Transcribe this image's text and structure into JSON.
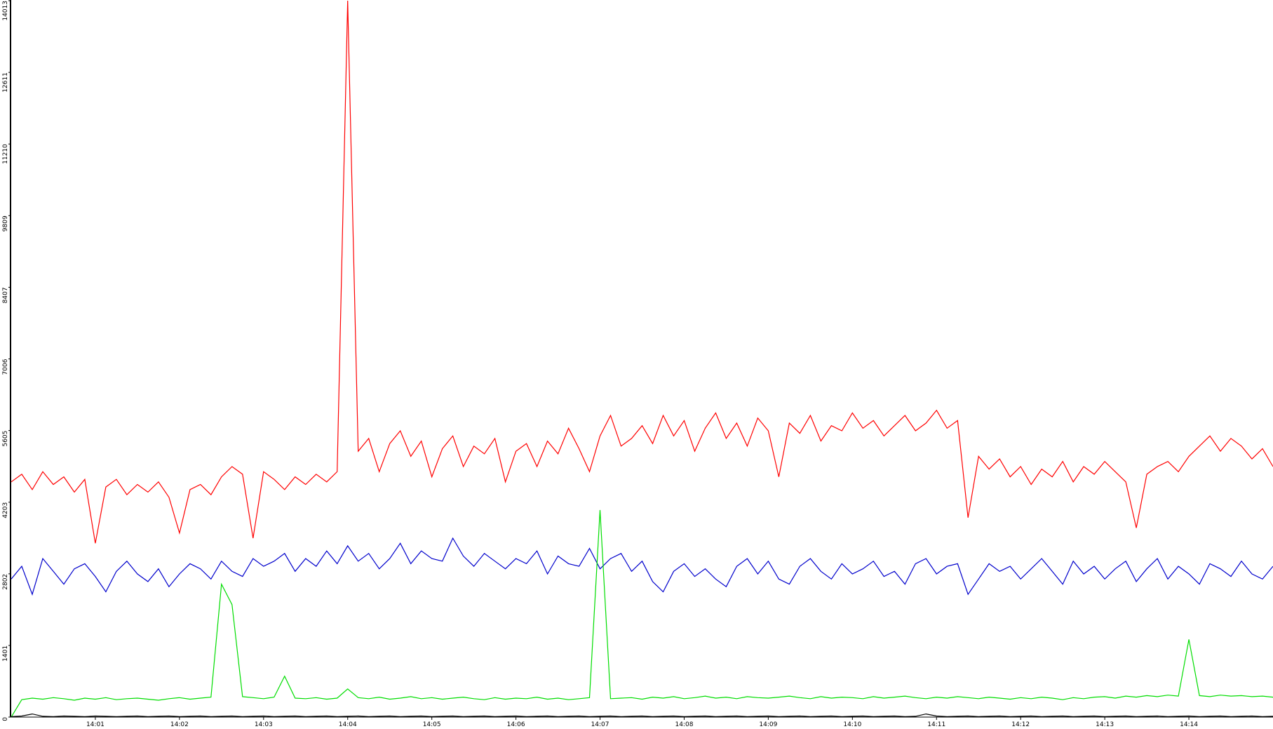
{
  "chart_data": {
    "type": "line",
    "xlim": [
      0,
      15
    ],
    "xticks": [
      {
        "value": 1,
        "label": "14:01"
      },
      {
        "value": 2,
        "label": "14:02"
      },
      {
        "value": 3,
        "label": "14:03"
      },
      {
        "value": 4,
        "label": "14:04"
      },
      {
        "value": 5,
        "label": "14:05"
      },
      {
        "value": 6,
        "label": "14:06"
      },
      {
        "value": 7,
        "label": "14:07"
      },
      {
        "value": 8,
        "label": "14:08"
      },
      {
        "value": 9,
        "label": "14:09"
      },
      {
        "value": 10,
        "label": "14:10"
      },
      {
        "value": 11,
        "label": "14:11"
      },
      {
        "value": 12,
        "label": "14:12"
      },
      {
        "value": 13,
        "label": "14:13"
      },
      {
        "value": 14,
        "label": "14:14"
      }
    ],
    "ylim": [
      0,
      14013
    ],
    "yticks": [
      0,
      1401,
      2802,
      4203,
      5605,
      7006,
      8407,
      9809,
      11210,
      12611,
      14013
    ],
    "x": [
      0,
      0.125,
      0.25,
      0.375,
      0.5,
      0.625,
      0.75,
      0.875,
      1,
      1.125,
      1.25,
      1.375,
      1.5,
      1.625,
      1.75,
      1.875,
      2,
      2.125,
      2.25,
      2.375,
      2.5,
      2.625,
      2.75,
      2.875,
      3,
      3.125,
      3.25,
      3.375,
      3.5,
      3.625,
      3.75,
      3.875,
      4,
      4.125,
      4.25,
      4.375,
      4.5,
      4.625,
      4.75,
      4.875,
      5,
      5.125,
      5.25,
      5.375,
      5.5,
      5.625,
      5.75,
      5.875,
      6,
      6.125,
      6.25,
      6.375,
      6.5,
      6.625,
      6.75,
      6.875,
      7,
      7.125,
      7.25,
      7.375,
      7.5,
      7.625,
      7.75,
      7.875,
      8,
      8.125,
      8.25,
      8.375,
      8.5,
      8.625,
      8.75,
      8.875,
      9,
      9.125,
      9.25,
      9.375,
      9.5,
      9.625,
      9.75,
      9.875,
      10,
      10.125,
      10.25,
      10.375,
      10.5,
      10.625,
      10.75,
      10.875,
      11,
      11.125,
      11.25,
      11.375,
      11.5,
      11.625,
      11.75,
      11.875,
      12,
      12.125,
      12.25,
      12.375,
      12.5,
      12.625,
      12.75,
      12.875,
      13,
      13.125,
      13.25,
      13.375,
      13.5,
      13.625,
      13.75,
      13.875,
      14,
      14.125,
      14.25,
      14.375,
      14.5,
      14.625,
      14.75,
      14.875,
      15
    ],
    "series": [
      {
        "color": "#ff0000",
        "values": [
          4600,
          4750,
          4450,
          4800,
          4550,
          4700,
          4400,
          4650,
          3400,
          4500,
          4650,
          4350,
          4550,
          4400,
          4600,
          4300,
          3600,
          4450,
          4550,
          4350,
          4700,
          4900,
          4750,
          3500,
          4800,
          4650,
          4450,
          4700,
          4550,
          4750,
          4600,
          4800,
          14013,
          5200,
          5450,
          4800,
          5350,
          5600,
          5100,
          5400,
          4700,
          5250,
          5500,
          4900,
          5300,
          5150,
          5450,
          4600,
          5200,
          5350,
          4900,
          5400,
          5150,
          5650,
          5250,
          4800,
          5500,
          5900,
          5300,
          5450,
          5700,
          5350,
          5900,
          5500,
          5800,
          5200,
          5650,
          5950,
          5450,
          5750,
          5300,
          5850,
          5600,
          4700,
          5750,
          5550,
          5900,
          5400,
          5700,
          5600,
          5950,
          5650,
          5800,
          5500,
          5700,
          5900,
          5600,
          5750,
          6000,
          5650,
          5800,
          3900,
          5100,
          4850,
          5050,
          4700,
          4900,
          4550,
          4850,
          4700,
          5000,
          4600,
          4900,
          4750,
          5000,
          4800,
          4600,
          3700,
          4750,
          4900,
          5000,
          4800,
          5100,
          5300,
          5500,
          5200,
          5450,
          5300,
          5050,
          5250,
          4900
        ]
      },
      {
        "color": "#0000cc",
        "values": [
          2700,
          2950,
          2400,
          3100,
          2850,
          2600,
          2900,
          3000,
          2750,
          2450,
          2850,
          3050,
          2800,
          2650,
          2900,
          2550,
          2800,
          3000,
          2900,
          2700,
          3050,
          2850,
          2750,
          3100,
          2950,
          3050,
          3200,
          2850,
          3100,
          2950,
          3250,
          3000,
          3350,
          3050,
          3200,
          2900,
          3100,
          3400,
          3000,
          3250,
          3100,
          3050,
          3500,
          3150,
          2950,
          3200,
          3050,
          2900,
          3100,
          3000,
          3250,
          2800,
          3150,
          3000,
          2950,
          3300,
          2900,
          3100,
          3200,
          2850,
          3050,
          2650,
          2450,
          2850,
          3000,
          2750,
          2900,
          2700,
          2550,
          2950,
          3100,
          2800,
          3050,
          2700,
          2600,
          2950,
          3100,
          2850,
          2700,
          3000,
          2800,
          2900,
          3050,
          2750,
          2850,
          2600,
          3000,
          3100,
          2800,
          2950,
          3000,
          2400,
          2700,
          3000,
          2850,
          2950,
          2700,
          2900,
          3100,
          2850,
          2600,
          3050,
          2800,
          2950,
          2700,
          2900,
          3050,
          2650,
          2900,
          3100,
          2700,
          2950,
          2800,
          2600,
          3000,
          2900,
          2750,
          3050,
          2800,
          2700,
          2950
        ]
      },
      {
        "color": "#00dd00",
        "values": [
          0,
          340,
          370,
          350,
          380,
          360,
          330,
          370,
          350,
          380,
          340,
          360,
          370,
          350,
          330,
          360,
          380,
          350,
          370,
          390,
          2600,
          2200,
          400,
          380,
          360,
          390,
          800,
          370,
          360,
          380,
          350,
          370,
          550,
          380,
          360,
          390,
          350,
          370,
          400,
          360,
          380,
          350,
          370,
          390,
          360,
          340,
          380,
          350,
          370,
          360,
          390,
          350,
          370,
          340,
          360,
          380,
          4050,
          360,
          370,
          380,
          350,
          390,
          370,
          400,
          360,
          380,
          410,
          370,
          390,
          360,
          400,
          380,
          370,
          390,
          410,
          380,
          360,
          400,
          370,
          390,
          380,
          360,
          400,
          370,
          390,
          410,
          380,
          360,
          390,
          370,
          400,
          380,
          360,
          390,
          370,
          350,
          380,
          360,
          390,
          370,
          340,
          380,
          360,
          390,
          400,
          370,
          410,
          390,
          420,
          400,
          430,
          410,
          1520,
          420,
          400,
          430,
          410,
          420,
          400,
          410,
          390
        ]
      },
      {
        "color": "#000000",
        "values": [
          10,
          20,
          60,
          15,
          10,
          20,
          15,
          10,
          20,
          15,
          10,
          15,
          20,
          10,
          15,
          20,
          10,
          15,
          20,
          10,
          15,
          20,
          10,
          15,
          20,
          10,
          15,
          20,
          10,
          15,
          20,
          10,
          15,
          20,
          10,
          15,
          20,
          10,
          15,
          20,
          10,
          15,
          20,
          10,
          15,
          20,
          10,
          15,
          20,
          10,
          15,
          20,
          10,
          15,
          20,
          10,
          15,
          20,
          10,
          15,
          20,
          10,
          15,
          20,
          10,
          15,
          20,
          10,
          15,
          20,
          10,
          15,
          20,
          10,
          15,
          20,
          10,
          15,
          20,
          10,
          15,
          20,
          10,
          15,
          20,
          10,
          15,
          60,
          20,
          10,
          15,
          20,
          10,
          15,
          20,
          10,
          15,
          20,
          10,
          15,
          20,
          10,
          15,
          20,
          10,
          15,
          20,
          10,
          15,
          20,
          10,
          15,
          20,
          10,
          15,
          20,
          10,
          15,
          20,
          10,
          15
        ]
      }
    ]
  }
}
